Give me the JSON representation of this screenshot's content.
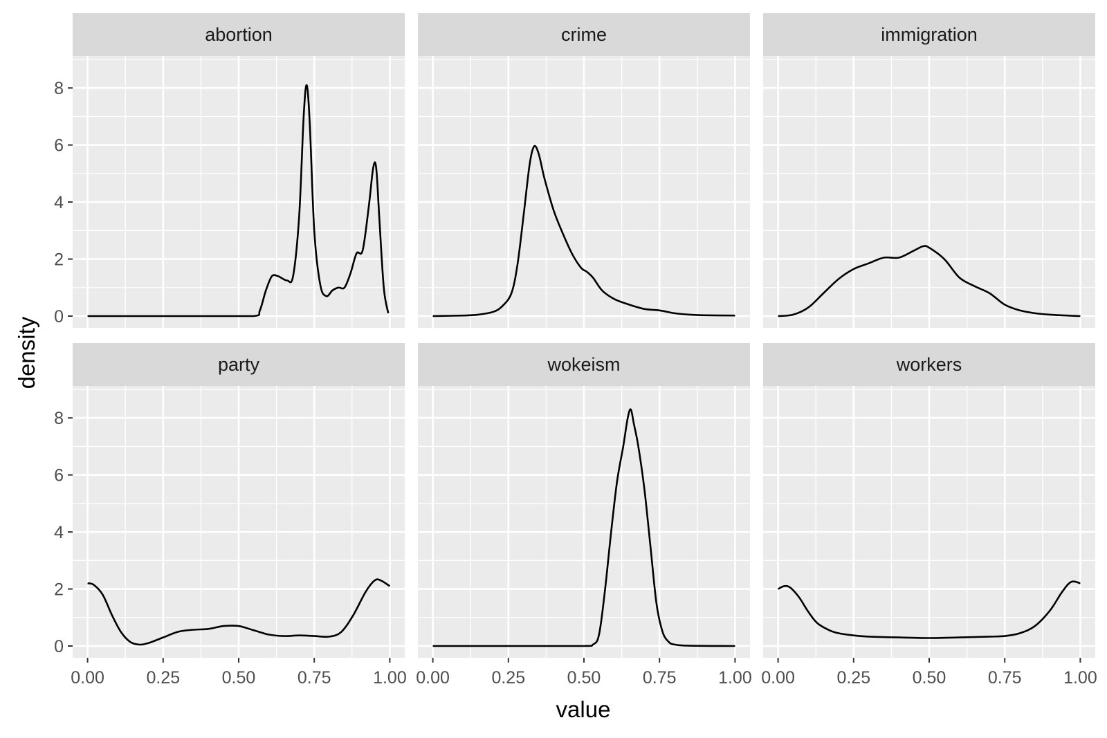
{
  "chart_data": {
    "type": "line",
    "subtype": "density",
    "facet_layout": {
      "rows": 2,
      "cols": 3
    },
    "xlabel": "value",
    "ylabel": "density",
    "xlim": [
      0,
      1
    ],
    "ylim": [
      0,
      9
    ],
    "x_ticks": [
      0,
      0.25,
      0.5,
      0.75,
      1
    ],
    "x_tick_labels": [
      "0.00",
      "0.25",
      "0.50",
      "0.75",
      "1.00"
    ],
    "y_ticks": [
      0,
      2,
      4,
      6,
      8
    ],
    "y_tick_labels": [
      "0",
      "2",
      "4",
      "6",
      "8"
    ],
    "grid": true,
    "colors": {
      "panel": "#ebebeb",
      "strip": "#d9d9d9",
      "grid": "#ffffff",
      "line": "#000000"
    },
    "panels": [
      {
        "title": "abortion",
        "points": [
          [
            0,
            0
          ],
          [
            0.2,
            0
          ],
          [
            0.4,
            0
          ],
          [
            0.55,
            0
          ],
          [
            0.57,
            0.2
          ],
          [
            0.59,
            0.9
          ],
          [
            0.61,
            1.4
          ],
          [
            0.63,
            1.4
          ],
          [
            0.66,
            1.25
          ],
          [
            0.68,
            1.4
          ],
          [
            0.7,
            3.5
          ],
          [
            0.715,
            7.0
          ],
          [
            0.725,
            8.1
          ],
          [
            0.735,
            6.8
          ],
          [
            0.75,
            3.0
          ],
          [
            0.77,
            1.1
          ],
          [
            0.79,
            0.7
          ],
          [
            0.81,
            0.9
          ],
          [
            0.83,
            1.0
          ],
          [
            0.85,
            1.0
          ],
          [
            0.87,
            1.5
          ],
          [
            0.89,
            2.2
          ],
          [
            0.91,
            2.3
          ],
          [
            0.93,
            3.8
          ],
          [
            0.945,
            5.2
          ],
          [
            0.955,
            5.2
          ],
          [
            0.965,
            3.5
          ],
          [
            0.98,
            1.0
          ],
          [
            0.995,
            0.1
          ]
        ]
      },
      {
        "title": "crime",
        "points": [
          [
            0,
            0
          ],
          [
            0.1,
            0.02
          ],
          [
            0.15,
            0.05
          ],
          [
            0.2,
            0.15
          ],
          [
            0.23,
            0.35
          ],
          [
            0.26,
            0.8
          ],
          [
            0.28,
            1.8
          ],
          [
            0.3,
            3.5
          ],
          [
            0.32,
            5.3
          ],
          [
            0.335,
            5.95
          ],
          [
            0.35,
            5.7
          ],
          [
            0.37,
            4.8
          ],
          [
            0.4,
            3.7
          ],
          [
            0.43,
            2.9
          ],
          [
            0.46,
            2.2
          ],
          [
            0.49,
            1.7
          ],
          [
            0.51,
            1.55
          ],
          [
            0.53,
            1.35
          ],
          [
            0.56,
            0.9
          ],
          [
            0.6,
            0.6
          ],
          [
            0.65,
            0.4
          ],
          [
            0.7,
            0.25
          ],
          [
            0.75,
            0.2
          ],
          [
            0.8,
            0.1
          ],
          [
            0.85,
            0.05
          ],
          [
            0.9,
            0.03
          ],
          [
            1.0,
            0.02
          ]
        ]
      },
      {
        "title": "immigration",
        "points": [
          [
            0,
            0
          ],
          [
            0.05,
            0.05
          ],
          [
            0.1,
            0.3
          ],
          [
            0.15,
            0.8
          ],
          [
            0.2,
            1.3
          ],
          [
            0.25,
            1.65
          ],
          [
            0.3,
            1.85
          ],
          [
            0.35,
            2.05
          ],
          [
            0.4,
            2.05
          ],
          [
            0.45,
            2.3
          ],
          [
            0.48,
            2.45
          ],
          [
            0.5,
            2.4
          ],
          [
            0.55,
            2.0
          ],
          [
            0.6,
            1.35
          ],
          [
            0.65,
            1.05
          ],
          [
            0.7,
            0.8
          ],
          [
            0.75,
            0.4
          ],
          [
            0.8,
            0.2
          ],
          [
            0.85,
            0.1
          ],
          [
            0.9,
            0.05
          ],
          [
            1.0,
            0
          ]
        ]
      },
      {
        "title": "party",
        "points": [
          [
            0,
            2.2
          ],
          [
            0.02,
            2.15
          ],
          [
            0.05,
            1.8
          ],
          [
            0.08,
            1.1
          ],
          [
            0.11,
            0.5
          ],
          [
            0.14,
            0.15
          ],
          [
            0.17,
            0.05
          ],
          [
            0.2,
            0.1
          ],
          [
            0.25,
            0.3
          ],
          [
            0.3,
            0.5
          ],
          [
            0.35,
            0.57
          ],
          [
            0.4,
            0.6
          ],
          [
            0.45,
            0.7
          ],
          [
            0.5,
            0.7
          ],
          [
            0.55,
            0.55
          ],
          [
            0.6,
            0.4
          ],
          [
            0.65,
            0.35
          ],
          [
            0.7,
            0.37
          ],
          [
            0.75,
            0.35
          ],
          [
            0.8,
            0.33
          ],
          [
            0.84,
            0.5
          ],
          [
            0.88,
            1.1
          ],
          [
            0.92,
            1.9
          ],
          [
            0.95,
            2.3
          ],
          [
            0.97,
            2.3
          ],
          [
            1.0,
            2.1
          ]
        ]
      },
      {
        "title": "wokeism",
        "points": [
          [
            0,
            0
          ],
          [
            0.3,
            0
          ],
          [
            0.5,
            0
          ],
          [
            0.53,
            0.05
          ],
          [
            0.55,
            0.4
          ],
          [
            0.57,
            2.0
          ],
          [
            0.59,
            4.0
          ],
          [
            0.61,
            5.8
          ],
          [
            0.63,
            7.0
          ],
          [
            0.645,
            8.0
          ],
          [
            0.655,
            8.3
          ],
          [
            0.665,
            7.8
          ],
          [
            0.68,
            7.0
          ],
          [
            0.7,
            5.5
          ],
          [
            0.72,
            3.5
          ],
          [
            0.74,
            1.5
          ],
          [
            0.76,
            0.5
          ],
          [
            0.78,
            0.15
          ],
          [
            0.8,
            0.05
          ],
          [
            0.85,
            0.01
          ],
          [
            1.0,
            0
          ]
        ]
      },
      {
        "title": "workers",
        "points": [
          [
            0,
            2.0
          ],
          [
            0.02,
            2.1
          ],
          [
            0.04,
            2.05
          ],
          [
            0.07,
            1.7
          ],
          [
            0.1,
            1.2
          ],
          [
            0.13,
            0.8
          ],
          [
            0.17,
            0.55
          ],
          [
            0.2,
            0.45
          ],
          [
            0.25,
            0.37
          ],
          [
            0.3,
            0.33
          ],
          [
            0.4,
            0.3
          ],
          [
            0.5,
            0.28
          ],
          [
            0.6,
            0.3
          ],
          [
            0.7,
            0.33
          ],
          [
            0.75,
            0.35
          ],
          [
            0.8,
            0.45
          ],
          [
            0.85,
            0.7
          ],
          [
            0.9,
            1.25
          ],
          [
            0.94,
            1.9
          ],
          [
            0.97,
            2.25
          ],
          [
            1.0,
            2.2
          ]
        ]
      }
    ]
  }
}
